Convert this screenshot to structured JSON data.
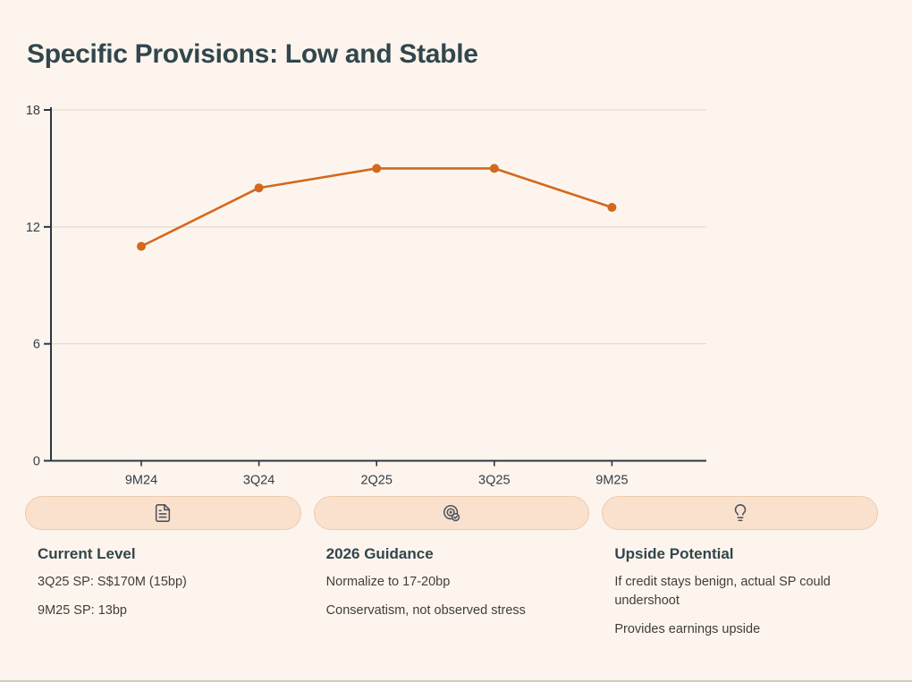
{
  "page": {
    "title": "Specific Provisions: Low and Stable",
    "background": "#fdf5ed"
  },
  "chart_data": {
    "type": "line",
    "categories": [
      "9M24",
      "3Q24",
      "2Q25",
      "3Q25",
      "9M25"
    ],
    "values": [
      11,
      14,
      15,
      15,
      13
    ],
    "title": "",
    "xlabel": "",
    "ylabel": "",
    "ylim": [
      0,
      18
    ],
    "yticks": [
      0,
      6,
      12,
      18
    ],
    "grid": true,
    "legend": "none",
    "line_color": "#d2691f",
    "marker_color": "#d2691f",
    "axis_color": "#2a3743",
    "grid_color": "#ddd6cd",
    "tick_label_color": "#333d4a"
  },
  "cards": [
    {
      "icon": "file-text-icon",
      "heading": "Current Level",
      "lines": [
        "3Q25 SP: S$170M (15bp)",
        "9M25 SP: 13bp"
      ]
    },
    {
      "icon": "target-check-icon",
      "heading": "2026 Guidance",
      "lines": [
        "Normalize to 17-20bp",
        "Conservatism, not observed stress"
      ]
    },
    {
      "icon": "lightbulb-icon",
      "heading": "Upside Potential",
      "lines": [
        "If credit stays benign, actual SP could undershoot",
        "Provides earnings upside"
      ]
    }
  ],
  "colors": {
    "background": "#fdf5ed",
    "heading": "#31464d",
    "body_text": "#403d3a",
    "pill_bg": "#fae1cd",
    "pill_border": "#eccaae",
    "icon": "#4d5460",
    "accent_orange": "#d2691f"
  }
}
